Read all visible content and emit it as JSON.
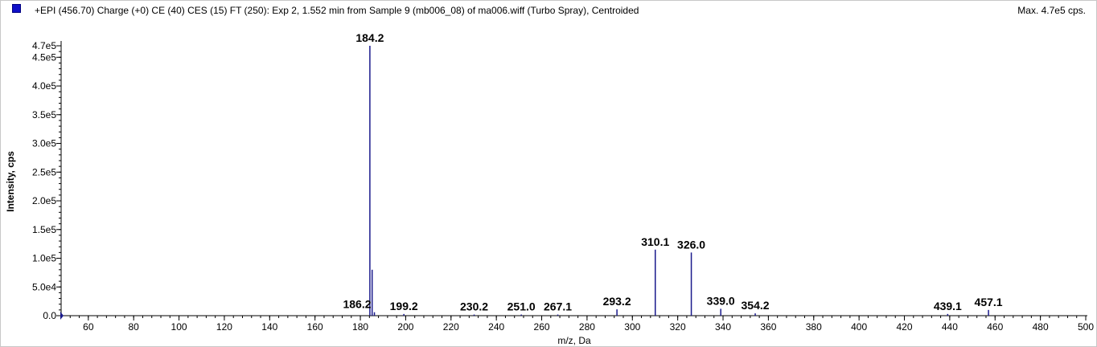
{
  "header": {
    "title": "+EPI (456.70) Charge (+0) CE (40) CES (15) FT (250): Exp 2, 1.552 min from Sample 9 (mb006_08) of ma006.wiff (Turbo Spray), Centroided",
    "max_label": "Max. 4.7e5 cps."
  },
  "colors": {
    "series": "#1a1a8c",
    "swatch": "#1010c8"
  },
  "chart_data": {
    "type": "bar",
    "title": "+EPI (456.70) Charge (+0) CE (40) CES (15) FT (250): Exp 2, 1.552 min from Sample 9 (mb006_08) of ma006.wiff (Turbo Spray), Centroided",
    "xlabel": "m/z, Da",
    "ylabel": "Intensity, cps",
    "xlim": [
      48,
      500
    ],
    "ylim": [
      0,
      470000
    ],
    "x_ticks": [
      "60",
      "80",
      "100",
      "120",
      "140",
      "160",
      "180",
      "200",
      "220",
      "240",
      "260",
      "280",
      "300",
      "320",
      "340",
      "360",
      "380",
      "400",
      "420",
      "440",
      "460",
      "480",
      "500"
    ],
    "y_ticks": [
      {
        "value": 0,
        "label": "0.0"
      },
      {
        "value": 50000,
        "label": "5.0e4"
      },
      {
        "value": 100000,
        "label": "1.0e5"
      },
      {
        "value": 150000,
        "label": "1.5e5"
      },
      {
        "value": 200000,
        "label": "2.0e5"
      },
      {
        "value": 250000,
        "label": "2.5e5"
      },
      {
        "value": 300000,
        "label": "3.0e5"
      },
      {
        "value": 350000,
        "label": "3.5e5"
      },
      {
        "value": 400000,
        "label": "4.0e5"
      },
      {
        "value": 450000,
        "label": "4.5e5"
      },
      {
        "value": 470000,
        "label": "4.7e5"
      }
    ],
    "peaks": [
      {
        "mz": 184.2,
        "intensity": 470000,
        "label": "184.2"
      },
      {
        "mz": 185.2,
        "intensity": 80000,
        "label": ""
      },
      {
        "mz": 186.2,
        "intensity": 6000,
        "label": "186.2"
      },
      {
        "mz": 199.2,
        "intensity": 3000,
        "label": "199.2"
      },
      {
        "mz": 230.2,
        "intensity": 2000,
        "label": "230.2"
      },
      {
        "mz": 251.0,
        "intensity": 2000,
        "label": "251.0"
      },
      {
        "mz": 267.1,
        "intensity": 2000,
        "label": "267.1"
      },
      {
        "mz": 293.2,
        "intensity": 11000,
        "label": "293.2"
      },
      {
        "mz": 310.1,
        "intensity": 115000,
        "label": "310.1"
      },
      {
        "mz": 326.0,
        "intensity": 110000,
        "label": "326.0"
      },
      {
        "mz": 339.0,
        "intensity": 12000,
        "label": "339.0"
      },
      {
        "mz": 354.2,
        "intensity": 4000,
        "label": "354.2"
      },
      {
        "mz": 439.1,
        "intensity": 3000,
        "label": "439.1"
      },
      {
        "mz": 457.1,
        "intensity": 10000,
        "label": "457.1"
      }
    ]
  }
}
